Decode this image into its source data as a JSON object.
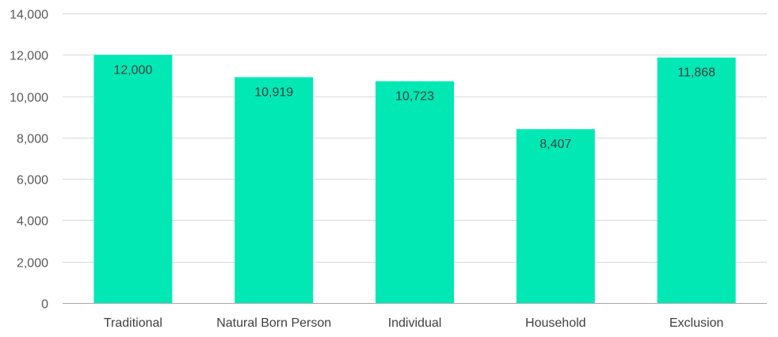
{
  "chart_data": {
    "type": "bar",
    "categories": [
      "Traditional",
      "Natural Born Person",
      "Individual",
      "Household",
      "Exclusion"
    ],
    "values": [
      12000,
      10919,
      10723,
      8407,
      11868
    ],
    "data_labels": [
      "12,000",
      "10,919",
      "10,723",
      "8,407",
      "11,868"
    ],
    "title": "",
    "xlabel": "",
    "ylabel": "",
    "ylim": [
      0,
      14000
    ],
    "yticks": [
      0,
      2000,
      4000,
      6000,
      8000,
      10000,
      12000,
      14000
    ],
    "ytick_labels": [
      "0",
      "2,000",
      "4,000",
      "6,000",
      "8,000",
      "10,000",
      "12,000",
      "14,000"
    ],
    "grid": "horizontal",
    "legend": "none",
    "colors": {
      "bar": "#02E8B5",
      "grid": "#D9D9D9",
      "axis": "#A6A6A6",
      "tick_text": "#595959",
      "label_text": "#404040"
    }
  }
}
